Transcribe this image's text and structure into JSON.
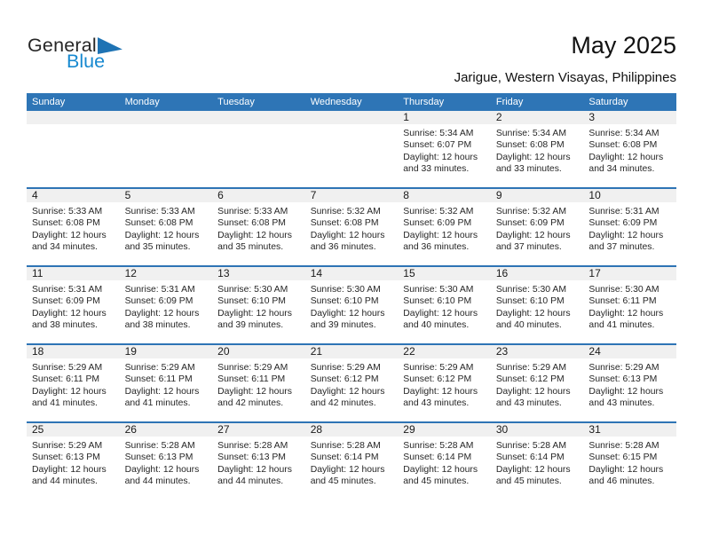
{
  "brand": {
    "general": "General",
    "blue": "Blue"
  },
  "header": {
    "title": "May 2025",
    "subtitle": "Jarigue, Western Visayas, Philippines"
  },
  "colors": {
    "header_blue": "#2E75B6",
    "week_separator_blue": "#2E74B5",
    "day_band_gray": "#F0F0F0",
    "logo_blue_text": "#1789D0",
    "logo_triangle_blue": "#1E73B4"
  },
  "weekday_headers": [
    "Sunday",
    "Monday",
    "Tuesday",
    "Wednesday",
    "Thursday",
    "Friday",
    "Saturday"
  ],
  "weeks": [
    [
      null,
      null,
      null,
      null,
      {
        "day": "1",
        "sunrise": "Sunrise: 5:34 AM",
        "sunset": "Sunset: 6:07 PM",
        "daylight": "Daylight: 12 hours and 33 minutes."
      },
      {
        "day": "2",
        "sunrise": "Sunrise: 5:34 AM",
        "sunset": "Sunset: 6:08 PM",
        "daylight": "Daylight: 12 hours and 33 minutes."
      },
      {
        "day": "3",
        "sunrise": "Sunrise: 5:34 AM",
        "sunset": "Sunset: 6:08 PM",
        "daylight": "Daylight: 12 hours and 34 minutes."
      }
    ],
    [
      {
        "day": "4",
        "sunrise": "Sunrise: 5:33 AM",
        "sunset": "Sunset: 6:08 PM",
        "daylight": "Daylight: 12 hours and 34 minutes."
      },
      {
        "day": "5",
        "sunrise": "Sunrise: 5:33 AM",
        "sunset": "Sunset: 6:08 PM",
        "daylight": "Daylight: 12 hours and 35 minutes."
      },
      {
        "day": "6",
        "sunrise": "Sunrise: 5:33 AM",
        "sunset": "Sunset: 6:08 PM",
        "daylight": "Daylight: 12 hours and 35 minutes."
      },
      {
        "day": "7",
        "sunrise": "Sunrise: 5:32 AM",
        "sunset": "Sunset: 6:08 PM",
        "daylight": "Daylight: 12 hours and 36 minutes."
      },
      {
        "day": "8",
        "sunrise": "Sunrise: 5:32 AM",
        "sunset": "Sunset: 6:09 PM",
        "daylight": "Daylight: 12 hours and 36 minutes."
      },
      {
        "day": "9",
        "sunrise": "Sunrise: 5:32 AM",
        "sunset": "Sunset: 6:09 PM",
        "daylight": "Daylight: 12 hours and 37 minutes."
      },
      {
        "day": "10",
        "sunrise": "Sunrise: 5:31 AM",
        "sunset": "Sunset: 6:09 PM",
        "daylight": "Daylight: 12 hours and 37 minutes."
      }
    ],
    [
      {
        "day": "11",
        "sunrise": "Sunrise: 5:31 AM",
        "sunset": "Sunset: 6:09 PM",
        "daylight": "Daylight: 12 hours and 38 minutes."
      },
      {
        "day": "12",
        "sunrise": "Sunrise: 5:31 AM",
        "sunset": "Sunset: 6:09 PM",
        "daylight": "Daylight: 12 hours and 38 minutes."
      },
      {
        "day": "13",
        "sunrise": "Sunrise: 5:30 AM",
        "sunset": "Sunset: 6:10 PM",
        "daylight": "Daylight: 12 hours and 39 minutes."
      },
      {
        "day": "14",
        "sunrise": "Sunrise: 5:30 AM",
        "sunset": "Sunset: 6:10 PM",
        "daylight": "Daylight: 12 hours and 39 minutes."
      },
      {
        "day": "15",
        "sunrise": "Sunrise: 5:30 AM",
        "sunset": "Sunset: 6:10 PM",
        "daylight": "Daylight: 12 hours and 40 minutes."
      },
      {
        "day": "16",
        "sunrise": "Sunrise: 5:30 AM",
        "sunset": "Sunset: 6:10 PM",
        "daylight": "Daylight: 12 hours and 40 minutes."
      },
      {
        "day": "17",
        "sunrise": "Sunrise: 5:30 AM",
        "sunset": "Sunset: 6:11 PM",
        "daylight": "Daylight: 12 hours and 41 minutes."
      }
    ],
    [
      {
        "day": "18",
        "sunrise": "Sunrise: 5:29 AM",
        "sunset": "Sunset: 6:11 PM",
        "daylight": "Daylight: 12 hours and 41 minutes."
      },
      {
        "day": "19",
        "sunrise": "Sunrise: 5:29 AM",
        "sunset": "Sunset: 6:11 PM",
        "daylight": "Daylight: 12 hours and 41 minutes."
      },
      {
        "day": "20",
        "sunrise": "Sunrise: 5:29 AM",
        "sunset": "Sunset: 6:11 PM",
        "daylight": "Daylight: 12 hours and 42 minutes."
      },
      {
        "day": "21",
        "sunrise": "Sunrise: 5:29 AM",
        "sunset": "Sunset: 6:12 PM",
        "daylight": "Daylight: 12 hours and 42 minutes."
      },
      {
        "day": "22",
        "sunrise": "Sunrise: 5:29 AM",
        "sunset": "Sunset: 6:12 PM",
        "daylight": "Daylight: 12 hours and 43 minutes."
      },
      {
        "day": "23",
        "sunrise": "Sunrise: 5:29 AM",
        "sunset": "Sunset: 6:12 PM",
        "daylight": "Daylight: 12 hours and 43 minutes."
      },
      {
        "day": "24",
        "sunrise": "Sunrise: 5:29 AM",
        "sunset": "Sunset: 6:13 PM",
        "daylight": "Daylight: 12 hours and 43 minutes."
      }
    ],
    [
      {
        "day": "25",
        "sunrise": "Sunrise: 5:29 AM",
        "sunset": "Sunset: 6:13 PM",
        "daylight": "Daylight: 12 hours and 44 minutes."
      },
      {
        "day": "26",
        "sunrise": "Sunrise: 5:28 AM",
        "sunset": "Sunset: 6:13 PM",
        "daylight": "Daylight: 12 hours and 44 minutes."
      },
      {
        "day": "27",
        "sunrise": "Sunrise: 5:28 AM",
        "sunset": "Sunset: 6:13 PM",
        "daylight": "Daylight: 12 hours and 44 minutes."
      },
      {
        "day": "28",
        "sunrise": "Sunrise: 5:28 AM",
        "sunset": "Sunset: 6:14 PM",
        "daylight": "Daylight: 12 hours and 45 minutes."
      },
      {
        "day": "29",
        "sunrise": "Sunrise: 5:28 AM",
        "sunset": "Sunset: 6:14 PM",
        "daylight": "Daylight: 12 hours and 45 minutes."
      },
      {
        "day": "30",
        "sunrise": "Sunrise: 5:28 AM",
        "sunset": "Sunset: 6:14 PM",
        "daylight": "Daylight: 12 hours and 45 minutes."
      },
      {
        "day": "31",
        "sunrise": "Sunrise: 5:28 AM",
        "sunset": "Sunset: 6:15 PM",
        "daylight": "Daylight: 12 hours and 46 minutes."
      }
    ]
  ]
}
